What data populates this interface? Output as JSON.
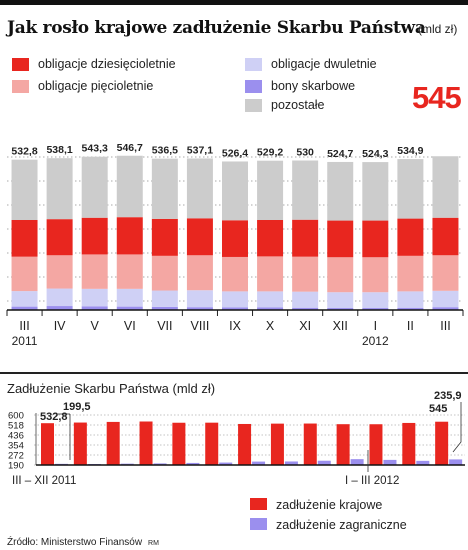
{
  "title": "Jak rosło krajowe zadłużenie Skarbu Państwa",
  "unit": "(mld zł)",
  "highlight_value": "545",
  "legend": [
    {
      "label": "obligacje dziesięcioletnie",
      "color": "#e8261f"
    },
    {
      "label": "obligacje pięcioletnie",
      "color": "#f4a7a3"
    },
    {
      "label": "obligacje dwuletnie",
      "color": "#cfd0f5"
    },
    {
      "label": "bony skarbowe",
      "color": "#9b8fee"
    },
    {
      "label": "pozostałe",
      "color": "#cccccc"
    }
  ],
  "chart_data": [
    {
      "type": "bar",
      "stacked": true,
      "categories": [
        "III",
        "IV",
        "V",
        "VI",
        "VII",
        "VIII",
        "IX",
        "X",
        "XI",
        "XII",
        "I",
        "II",
        "III"
      ],
      "year_labels": [
        {
          "index": 0,
          "label": "2011"
        },
        {
          "index": 10,
          "label": "2012"
        }
      ],
      "totals": [
        532.8,
        538.1,
        543.3,
        546.7,
        536.5,
        537.1,
        526.4,
        529.2,
        530,
        524.7,
        524.3,
        534.9,
        545
      ],
      "total_labels": [
        "532,8",
        "538,1",
        "543,3",
        "546,7",
        "536,5",
        "537,1",
        "526,4",
        "529,2",
        "530",
        "524,7",
        "524,3",
        "534,9",
        "545"
      ],
      "series": [
        {
          "name": "bony skarbowe",
          "values": [
            12,
            14,
            13,
            12,
            11,
            10,
            9,
            9,
            8,
            7,
            7,
            8,
            10
          ]
        },
        {
          "name": "obligacje dwuletnie",
          "values": [
            55,
            62,
            62,
            63,
            58,
            60,
            57,
            57,
            57,
            56,
            56,
            58,
            58
          ]
        },
        {
          "name": "obligacje pięcioletnie",
          "values": [
            122,
            118,
            122,
            122,
            123,
            124,
            122,
            124,
            124,
            124,
            124,
            126,
            126
          ]
        },
        {
          "name": "obligacje dziesięcioletnie",
          "values": [
            130,
            128,
            130,
            132,
            131,
            131,
            130,
            129,
            131,
            130,
            130,
            132,
            133
          ]
        },
        {
          "name": "pozostałe",
          "values": [
            213.8,
            216.1,
            216.3,
            217.7,
            213.5,
            212.1,
            208.4,
            210.2,
            209.9,
            207.7,
            207.3,
            210.9,
            218
          ]
        }
      ],
      "ylim": [
        0,
        560
      ],
      "grid": true
    },
    {
      "type": "bar",
      "title": "Zadłużenie Skarbu Państwa (mld zł)",
      "categories": [
        "III",
        "IV",
        "V",
        "VI",
        "VII",
        "VIII",
        "IX",
        "X",
        "XI",
        "XII",
        "I",
        "II",
        "III"
      ],
      "period_labels": [
        "III – XII 2011",
        "I – III 2012"
      ],
      "yticks": [
        190,
        272,
        354,
        436,
        518,
        600
      ],
      "ylim": [
        190,
        600
      ],
      "series": [
        {
          "name": "zadłużenie krajowe",
          "color": "#e8261f",
          "values": [
            532.8,
            538.1,
            543.3,
            546.7,
            536.5,
            537.1,
            526.4,
            529.2,
            530,
            524.7,
            524.3,
            534.9,
            545
          ]
        },
        {
          "name": "zadłużenie zagraniczne",
          "color": "#9b8fee",
          "values": [
            199.5,
            198,
            201,
            203,
            207,
            210,
            218,
            219,
            225,
            238,
            232,
            224,
            235.9
          ]
        }
      ],
      "annotations": [
        {
          "text": "532,8",
          "series": "zadłużenie krajowe",
          "index": 0
        },
        {
          "text": "199,5",
          "series": "zadłużenie zagraniczne",
          "index": 0
        },
        {
          "text": "235,9",
          "series": "zadłużenie zagraniczne",
          "index": 12
        },
        {
          "text": "545",
          "series": "zadłużenie krajowe",
          "index": 12
        }
      ]
    }
  ],
  "source": "Źródło: Ministerstwo Finansów",
  "author": "RM"
}
